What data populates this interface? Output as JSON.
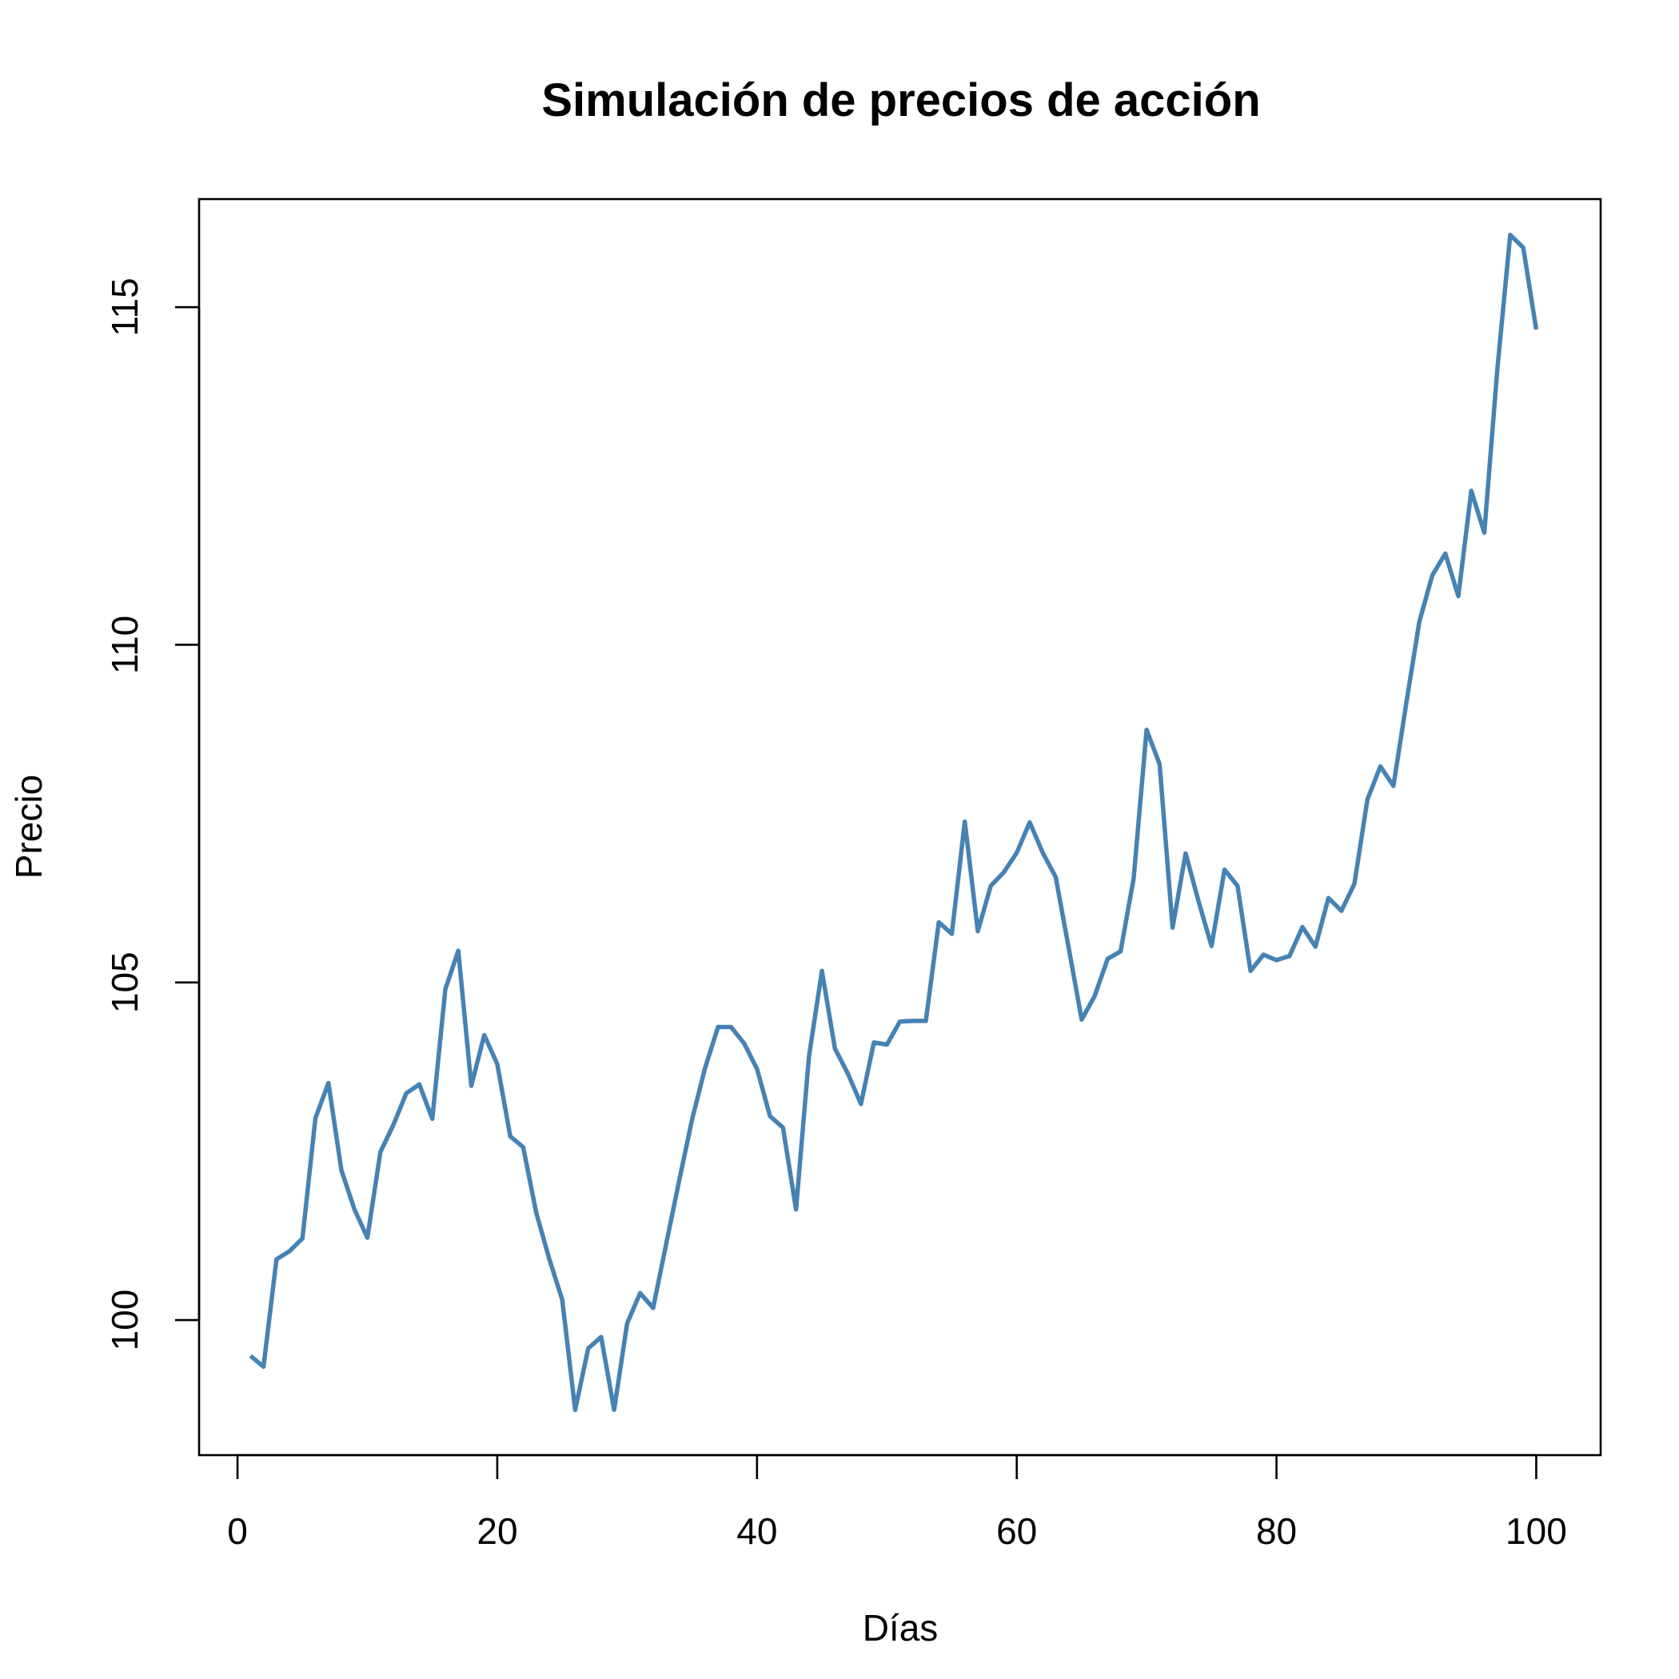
{
  "chart_data": {
    "type": "line",
    "title": "Simulación de precios de acción",
    "xlabel": "Días",
    "ylabel": "Precio",
    "xlim": [
      -2.96,
      104.96
    ],
    "ylim": [
      98.0,
      116.6
    ],
    "x_ticks": [
      0,
      20,
      40,
      60,
      80,
      100
    ],
    "y_ticks": [
      100,
      105,
      110,
      115
    ],
    "grid": false,
    "legend": "none",
    "color": "#4682B4",
    "series": [
      {
        "x": [
          1,
          2,
          3,
          4,
          5,
          6,
          7,
          8,
          9,
          10,
          11,
          12,
          13,
          14,
          15,
          16,
          17,
          18,
          19,
          20,
          21,
          22,
          23,
          24,
          25,
          26,
          27,
          28,
          29,
          30,
          31,
          32,
          33,
          34,
          35,
          36,
          37,
          38,
          39,
          40,
          41,
          42,
          43,
          44,
          45,
          46,
          47,
          48,
          49,
          50,
          51,
          52,
          53,
          54,
          55,
          56,
          57,
          58,
          59,
          60,
          61,
          62,
          63,
          64,
          65,
          66,
          67,
          68,
          69,
          70,
          71,
          72,
          73,
          74,
          75,
          76,
          77,
          78,
          79,
          80,
          81,
          82,
          83,
          84,
          85,
          86,
          87,
          88,
          89,
          90,
          91,
          92,
          93,
          94,
          95,
          96,
          97,
          98,
          99,
          100
        ],
        "values": [
          99.47,
          99.31,
          100.9,
          101.02,
          101.21,
          102.99,
          103.51,
          102.22,
          101.64,
          101.22,
          102.49,
          102.89,
          103.36,
          103.49,
          102.98,
          104.9,
          105.47,
          103.47,
          104.22,
          103.79,
          102.72,
          102.56,
          101.59,
          100.91,
          100.3,
          98.67,
          99.58,
          99.75,
          98.67,
          99.95,
          100.4,
          100.18,
          101.12,
          102.06,
          102.97,
          103.73,
          104.34,
          104.34,
          104.1,
          103.72,
          103.02,
          102.85,
          101.64,
          103.9,
          105.17,
          104.02,
          103.65,
          103.2,
          104.11,
          104.08,
          104.42,
          104.43,
          104.43,
          105.89,
          105.72,
          107.38,
          105.76,
          106.43,
          106.63,
          106.92,
          107.37,
          106.92,
          106.56,
          105.51,
          104.45,
          104.8,
          105.35,
          105.46,
          106.54,
          108.74,
          108.23,
          105.81,
          106.91,
          106.2,
          105.54,
          106.67,
          106.43,
          105.17,
          105.41,
          105.33,
          105.39,
          105.82,
          105.53,
          106.25,
          106.06,
          106.46,
          107.71,
          108.2,
          107.91,
          109.14,
          110.34,
          111.03,
          111.35,
          110.72,
          112.28,
          111.66,
          114.07,
          116.07,
          115.88,
          114.67
        ]
      }
    ]
  }
}
